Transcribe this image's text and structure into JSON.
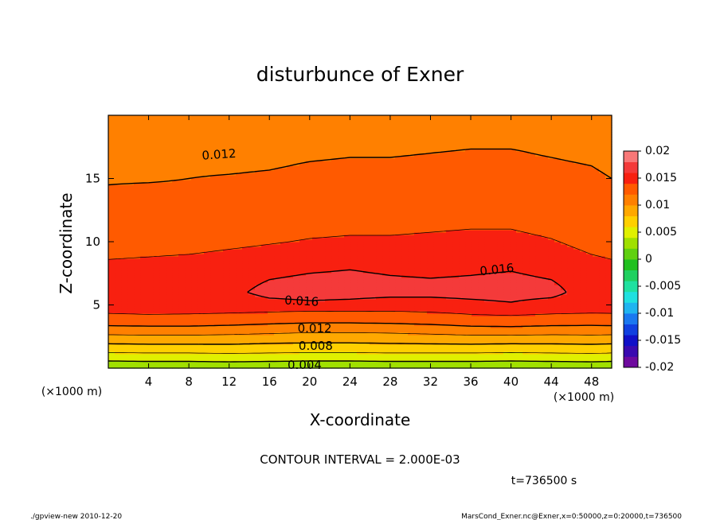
{
  "chart_data": {
    "type": "heatmap",
    "title": "disturbunce of Exner",
    "xlabel": "X-coordinate",
    "ylabel": "Z-coordinate",
    "x_unit": "(×1000 m)",
    "y_unit": "(×1000 m)",
    "xlim": [
      0,
      50
    ],
    "ylim": [
      0,
      20
    ],
    "x_ticks": [
      "4",
      "8",
      "12",
      "16",
      "20",
      "24",
      "28",
      "32",
      "36",
      "40",
      "44",
      "48"
    ],
    "y_ticks": [
      "5",
      "10",
      "15"
    ],
    "contour_interval_text": "CONTOUR INTERVAL = 2.000E-03",
    "time_text": "t=736500 s",
    "footer_left": "./gpview-new   2010-12-20",
    "footer_right": "MarsCond_Exner.nc@Exner,x=0:50000,z=0:20000,t=736500",
    "colorbar": {
      "levels": [
        -0.02,
        -0.018,
        -0.016,
        -0.014,
        -0.012,
        -0.01,
        -0.008,
        -0.006,
        -0.004,
        -0.002,
        0,
        0.002,
        0.004,
        0.006,
        0.008,
        0.01,
        0.012,
        0.014,
        0.016,
        0.018,
        0.02
      ],
      "colors": [
        "#6e0a9e",
        "#3a0ab0",
        "#1010c8",
        "#1040e0",
        "#1a78f0",
        "#20b4f0",
        "#20e0e0",
        "#20e0a0",
        "#20d060",
        "#20c020",
        "#60d010",
        "#a0e000",
        "#e0f000",
        "#ffd000",
        "#ffa800",
        "#ff8000",
        "#ff5a00",
        "#f82010",
        "#f43a3a",
        "#f87878"
      ],
      "tick_labels": [
        "0.02",
        "0.015",
        "0.01",
        "0.005",
        "0",
        "-0.005",
        "-0.01",
        "-0.015",
        "-0.02"
      ]
    },
    "contour_labels": [
      "0.012",
      "0.016",
      "0.016",
      "0.012",
      "0.008",
      "0.004"
    ],
    "field": {
      "x": [
        0,
        4,
        8,
        12,
        16,
        20,
        24,
        28,
        32,
        36,
        40,
        44,
        48,
        50
      ],
      "z": [
        0.0,
        0.5,
        1.0,
        1.5,
        2.0,
        2.5,
        3.0,
        3.5,
        4.0,
        4.5,
        5.0,
        6.0,
        7.0,
        8.0,
        9.0,
        10.0,
        11.0,
        12.0,
        13.0,
        14.0,
        15.0,
        16.0,
        17.0,
        18.0,
        19.0,
        20.0
      ],
      "values": [
        [
          0.0025,
          0.0025,
          0.0025,
          0.0026,
          0.0025,
          0.0024,
          0.0024,
          0.0025,
          0.0025,
          0.0025,
          0.0024,
          0.0025,
          0.0026,
          0.0025
        ],
        [
          0.0038,
          0.0039,
          0.0039,
          0.004,
          0.0039,
          0.0038,
          0.0038,
          0.0039,
          0.0039,
          0.0039,
          0.0038,
          0.0039,
          0.004,
          0.0039
        ],
        [
          0.0053,
          0.0054,
          0.0054,
          0.0055,
          0.0054,
          0.0053,
          0.0053,
          0.0054,
          0.0054,
          0.0054,
          0.0053,
          0.0054,
          0.0055,
          0.0054
        ],
        [
          0.0068,
          0.0069,
          0.0069,
          0.007,
          0.0069,
          0.0068,
          0.0068,
          0.0069,
          0.0069,
          0.0069,
          0.0068,
          0.0069,
          0.007,
          0.0069
        ],
        [
          0.0082,
          0.0083,
          0.0083,
          0.0083,
          0.0081,
          0.008,
          0.008,
          0.0081,
          0.0082,
          0.0083,
          0.0082,
          0.0082,
          0.0083,
          0.0082
        ],
        [
          0.0096,
          0.0097,
          0.0097,
          0.0096,
          0.0094,
          0.0092,
          0.0092,
          0.0093,
          0.0095,
          0.0097,
          0.0097,
          0.0096,
          0.0097,
          0.0096
        ],
        [
          0.011,
          0.0111,
          0.0111,
          0.0109,
          0.0107,
          0.0105,
          0.0105,
          0.0106,
          0.0108,
          0.0111,
          0.0112,
          0.011,
          0.011,
          0.011
        ],
        [
          0.0124,
          0.0125,
          0.0125,
          0.0123,
          0.012,
          0.0118,
          0.0118,
          0.0119,
          0.0121,
          0.0125,
          0.0126,
          0.0124,
          0.0123,
          0.0124
        ],
        [
          0.0136,
          0.0137,
          0.0136,
          0.0135,
          0.0133,
          0.0131,
          0.0131,
          0.0132,
          0.0134,
          0.0137,
          0.0138,
          0.0136,
          0.0135,
          0.0136
        ],
        [
          0.0142,
          0.0143,
          0.0143,
          0.0142,
          0.0141,
          0.014,
          0.014,
          0.014,
          0.0141,
          0.0143,
          0.0144,
          0.0143,
          0.0142,
          0.0142
        ],
        [
          0.0145,
          0.0146,
          0.0146,
          0.0147,
          0.0153,
          0.0157,
          0.0155,
          0.0152,
          0.0152,
          0.0155,
          0.0158,
          0.0152,
          0.0146,
          0.0145
        ],
        [
          0.0147,
          0.0148,
          0.0149,
          0.0155,
          0.0166,
          0.0166,
          0.0166,
          0.0165,
          0.0165,
          0.0166,
          0.0167,
          0.0166,
          0.015,
          0.0147
        ],
        [
          0.0146,
          0.0147,
          0.0149,
          0.0152,
          0.016,
          0.0165,
          0.0167,
          0.0163,
          0.0161,
          0.0163,
          0.0166,
          0.016,
          0.0149,
          0.0146
        ],
        [
          0.0143,
          0.0144,
          0.0145,
          0.0147,
          0.015,
          0.0155,
          0.0158,
          0.0154,
          0.0152,
          0.0154,
          0.0157,
          0.015,
          0.0145,
          0.0143
        ],
        [
          0.0138,
          0.0139,
          0.014,
          0.0142,
          0.0144,
          0.0146,
          0.0147,
          0.0146,
          0.0146,
          0.0147,
          0.0148,
          0.0145,
          0.014,
          0.0138
        ],
        [
          0.0133,
          0.0134,
          0.0135,
          0.0137,
          0.0139,
          0.0141,
          0.0142,
          0.0142,
          0.0143,
          0.0144,
          0.0144,
          0.0141,
          0.0136,
          0.0134
        ],
        [
          0.0129,
          0.013,
          0.0131,
          0.0133,
          0.0135,
          0.0137,
          0.0138,
          0.0138,
          0.0139,
          0.014,
          0.014,
          0.0137,
          0.0133,
          0.0131
        ],
        [
          0.0126,
          0.0127,
          0.0128,
          0.0129,
          0.0131,
          0.0133,
          0.0134,
          0.0134,
          0.0135,
          0.0136,
          0.0136,
          0.0134,
          0.013,
          0.0128
        ],
        [
          0.0123,
          0.0124,
          0.0125,
          0.0126,
          0.0128,
          0.013,
          0.013,
          0.0131,
          0.0132,
          0.0133,
          0.0133,
          0.0131,
          0.0127,
          0.0125
        ],
        [
          0.0121,
          0.0122,
          0.0122,
          0.0123,
          0.0125,
          0.0127,
          0.0127,
          0.0128,
          0.0129,
          0.013,
          0.013,
          0.0128,
          0.0124,
          0.0122
        ],
        [
          0.0119,
          0.0119,
          0.012,
          0.0121,
          0.0122,
          0.0124,
          0.0125,
          0.0125,
          0.0126,
          0.0127,
          0.0127,
          0.0125,
          0.0122,
          0.012
        ],
        [
          0.0117,
          0.0117,
          0.0118,
          0.0118,
          0.0119,
          0.0121,
          0.0122,
          0.0122,
          0.0123,
          0.0124,
          0.0124,
          0.0122,
          0.012,
          0.0118
        ],
        [
          0.0114,
          0.0115,
          0.0115,
          0.0116,
          0.0117,
          0.0118,
          0.0119,
          0.0119,
          0.012,
          0.0121,
          0.0121,
          0.0119,
          0.0117,
          0.0116
        ],
        [
          0.0112,
          0.0112,
          0.0113,
          0.0113,
          0.0114,
          0.0115,
          0.0116,
          0.0116,
          0.0117,
          0.0118,
          0.0118,
          0.0117,
          0.0115,
          0.0113
        ],
        [
          0.011,
          0.011,
          0.011,
          0.0111,
          0.0112,
          0.0112,
          0.0113,
          0.0113,
          0.0114,
          0.0115,
          0.0115,
          0.0114,
          0.0112,
          0.0111
        ],
        [
          0.0108,
          0.0108,
          0.0108,
          0.0109,
          0.0109,
          0.011,
          0.011,
          0.011,
          0.0111,
          0.0112,
          0.0112,
          0.0111,
          0.0109,
          0.0108
        ]
      ]
    }
  }
}
